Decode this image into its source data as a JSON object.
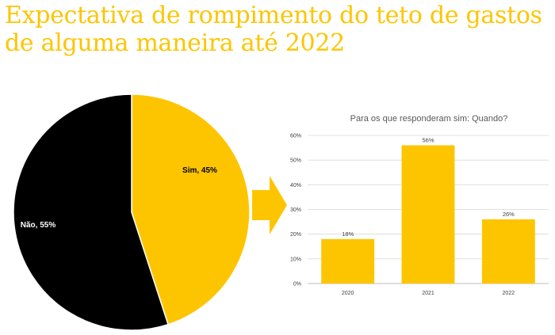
{
  "title": "Expectativa de rompimento do teto de gastos de alguma maneira até 2022",
  "colors": {
    "title": "#fdc500",
    "sim": "#fdc500",
    "nao": "#000000",
    "bar": "#fdc500",
    "grid": "#d9d9d9",
    "arrow": "#fdc500"
  },
  "arrow_icon": "right-arrow-icon",
  "chart_data": [
    {
      "type": "pie",
      "slices": [
        {
          "label": "Sim, 45%",
          "name": "Sim",
          "value": 45,
          "color": "#fdc500"
        },
        {
          "label": "Não, 55%",
          "name": "Não",
          "value": 55,
          "color": "#000000"
        }
      ]
    },
    {
      "type": "bar",
      "title": "Para os que responderam sim: Quando?",
      "categories": [
        "2020",
        "2021",
        "2022"
      ],
      "values": [
        18,
        56,
        26
      ],
      "data_labels": [
        "18%",
        "56%",
        "26%"
      ],
      "ylim": [
        0,
        60
      ],
      "yticks": [
        "0%",
        "10%",
        "20%",
        "30%",
        "40%",
        "50%",
        "60%"
      ],
      "grid": true,
      "color": "#fdc500"
    }
  ]
}
